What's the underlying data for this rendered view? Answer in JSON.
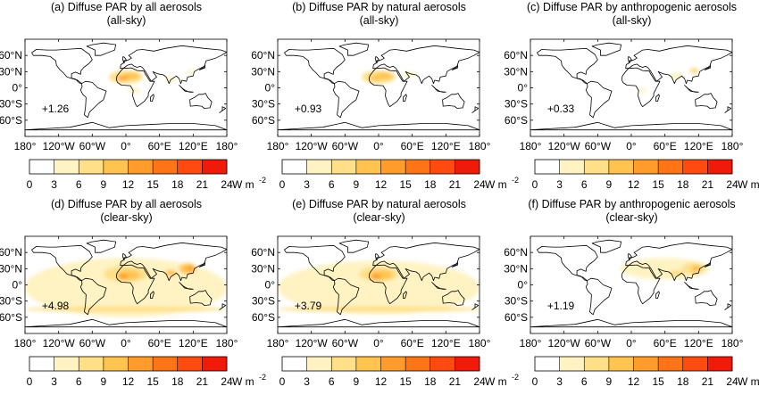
{
  "panels": [
    {
      "title": "(a) Diffuse PAR by all aerosols",
      "subtitle": "(all-sky)",
      "mean": "+1.26",
      "blobs": [
        [
          0,
          20,
          60,
          24,
          2
        ],
        [
          10,
          22,
          30,
          12,
          3
        ],
        [
          -5,
          18,
          20,
          8,
          4
        ],
        [
          80,
          15,
          20,
          10,
          1
        ],
        [
          115,
          30,
          12,
          8,
          1
        ],
        [
          15,
          -5,
          20,
          10,
          1
        ]
      ]
    },
    {
      "title": "(b) Diffuse PAR by natural aerosols",
      "subtitle": "(all-sky)",
      "mean": "+0.93",
      "blobs": [
        [
          0,
          20,
          60,
          24,
          2
        ],
        [
          10,
          22,
          30,
          12,
          3
        ],
        [
          -5,
          18,
          18,
          8,
          3
        ],
        [
          55,
          25,
          25,
          10,
          1
        ]
      ]
    },
    {
      "title": "(c) Diffuse PAR by anthropogenic aerosols",
      "subtitle": "(all-sky)",
      "mean": "+0.33",
      "blobs": [
        [
          80,
          22,
          22,
          12,
          1
        ],
        [
          112,
          32,
          16,
          10,
          2
        ],
        [
          115,
          30,
          6,
          5,
          3
        ],
        [
          20,
          -5,
          16,
          8,
          1
        ]
      ]
    },
    {
      "title": "(d) Diffuse PAR by all aerosols",
      "subtitle": "(clear-sky)",
      "mean": "+4.98",
      "blobs": [
        [
          0,
          -5,
          360,
          110,
          1
        ],
        [
          0,
          20,
          80,
          30,
          2
        ],
        [
          5,
          18,
          40,
          18,
          3
        ],
        [
          -5,
          15,
          18,
          10,
          4
        ],
        [
          110,
          30,
          30,
          20,
          3
        ],
        [
          115,
          30,
          12,
          10,
          4
        ],
        [
          80,
          22,
          20,
          12,
          3
        ],
        [
          0,
          -45,
          360,
          10,
          2
        ]
      ]
    },
    {
      "title": "(e) Diffuse PAR by natural aerosols",
      "subtitle": "(clear-sky)",
      "mean": "+3.79",
      "blobs": [
        [
          0,
          -5,
          360,
          100,
          1
        ],
        [
          0,
          20,
          70,
          28,
          2
        ],
        [
          5,
          18,
          40,
          18,
          3
        ],
        [
          -5,
          15,
          18,
          10,
          4
        ],
        [
          0,
          -45,
          360,
          10,
          2
        ]
      ]
    },
    {
      "title": "(f) Diffuse PAR by anthropogenic aerosols",
      "subtitle": "(clear-sky)",
      "mean": "+1.19",
      "blobs": [
        [
          60,
          30,
          160,
          40,
          1
        ],
        [
          110,
          30,
          40,
          22,
          2
        ],
        [
          115,
          30,
          16,
          12,
          3
        ],
        [
          118,
          32,
          6,
          5,
          4
        ],
        [
          80,
          22,
          24,
          12,
          2
        ]
      ]
    }
  ],
  "axes": {
    "lat_labels": [
      "60°N",
      "30°N",
      "0°",
      "30°S",
      "60°S"
    ],
    "lon_labels": [
      "180°",
      "120°W",
      "60°W",
      "0°",
      "60°E",
      "120°E",
      "180°"
    ]
  },
  "colorbar": {
    "ticks": [
      "0",
      "3",
      "6",
      "9",
      "12",
      "15",
      "18",
      "21",
      "24"
    ],
    "unit": "W m",
    "unit_sup": "-2",
    "colors": [
      "#ffffff",
      "#ffffff",
      "#fff3c3",
      "#ffdf87",
      "#ffc34f",
      "#ff9c2c",
      "#ff7417",
      "#ff4a10",
      "#f01a0a"
    ]
  }
}
